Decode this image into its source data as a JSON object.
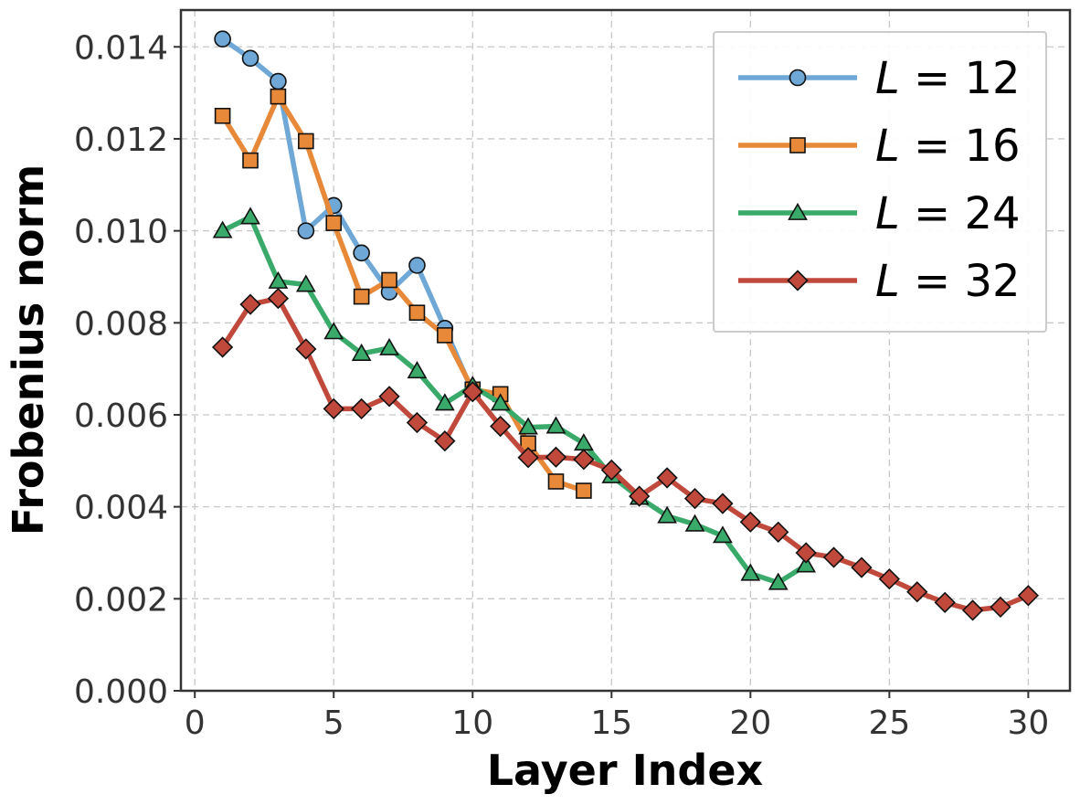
{
  "chart_data": {
    "type": "line",
    "title": "",
    "xlabel": "Layer Index",
    "ylabel": "Frobenius norm",
    "xlim": [
      -0.5,
      31.5
    ],
    "ylim": [
      0,
      0.0148
    ],
    "xticks": [
      0,
      5,
      10,
      15,
      20,
      25,
      30
    ],
    "xtick_labels": [
      "0",
      "5",
      "10",
      "15",
      "20",
      "25",
      "30"
    ],
    "yticks": [
      0,
      0.002,
      0.004,
      0.006,
      0.008,
      0.01,
      0.012,
      0.014
    ],
    "ytick_labels": [
      "0.000",
      "0.002",
      "0.004",
      "0.006",
      "0.008",
      "0.010",
      "0.012",
      "0.014"
    ],
    "grid": true,
    "legend_position": "top-right",
    "series": [
      {
        "name": "L = 12",
        "var": "L",
        "value_label": "12",
        "color": "#6fa8d6",
        "marker": "circle",
        "marker_color": "#6fa8d6",
        "x": [
          1,
          2,
          3,
          4,
          5,
          6,
          7,
          8,
          9,
          10
        ],
        "values": [
          0.01417,
          0.01375,
          0.01325,
          0.01,
          0.01055,
          0.00952,
          0.00867,
          0.00925,
          0.00788,
          0.0065
        ]
      },
      {
        "name": "L = 16",
        "var": "L",
        "value_label": "16",
        "color": "#e8893a",
        "marker": "square",
        "marker_color": "#e8893a",
        "x": [
          1,
          2,
          3,
          4,
          5,
          6,
          7,
          8,
          9,
          10,
          11,
          12,
          13,
          14
        ],
        "values": [
          0.0125,
          0.01153,
          0.01292,
          0.01195,
          0.01017,
          0.00857,
          0.00893,
          0.00822,
          0.00773,
          0.00655,
          0.00645,
          0.00538,
          0.00455,
          0.00435
        ]
      },
      {
        "name": "L = 24",
        "var": "L",
        "value_label": "24",
        "color": "#3aaa6a",
        "marker": "triangle",
        "marker_color": "#3aaa6a",
        "x": [
          1,
          2,
          3,
          4,
          5,
          6,
          7,
          8,
          9,
          10,
          11,
          12,
          13,
          14,
          15,
          16,
          17,
          18,
          19,
          20,
          21,
          22
        ],
        "values": [
          0.01,
          0.0103,
          0.0089,
          0.00883,
          0.0078,
          0.00733,
          0.00745,
          0.00695,
          0.00625,
          0.00663,
          0.00625,
          0.00573,
          0.00575,
          0.00538,
          0.00467,
          0.0042,
          0.0038,
          0.00362,
          0.00337,
          0.00255,
          0.00235,
          0.00273
        ]
      },
      {
        "name": "L = 32",
        "var": "L",
        "value_label": "32",
        "color": "#c1493c",
        "marker": "diamond",
        "marker_color": "#c1493c",
        "x": [
          1,
          2,
          3,
          4,
          5,
          6,
          7,
          8,
          9,
          10,
          11,
          12,
          13,
          14,
          15,
          16,
          17,
          18,
          19,
          20,
          21,
          22,
          23,
          24,
          25,
          26,
          27,
          28,
          29,
          30
        ],
        "values": [
          0.00747,
          0.0084,
          0.00853,
          0.00743,
          0.00613,
          0.00613,
          0.0064,
          0.00583,
          0.00543,
          0.0065,
          0.00575,
          0.00507,
          0.00508,
          0.00503,
          0.0048,
          0.00423,
          0.00463,
          0.00418,
          0.00407,
          0.00367,
          0.00345,
          0.003,
          0.0029,
          0.00268,
          0.00243,
          0.00215,
          0.00192,
          0.00175,
          0.00182,
          0.00207
        ]
      }
    ]
  }
}
